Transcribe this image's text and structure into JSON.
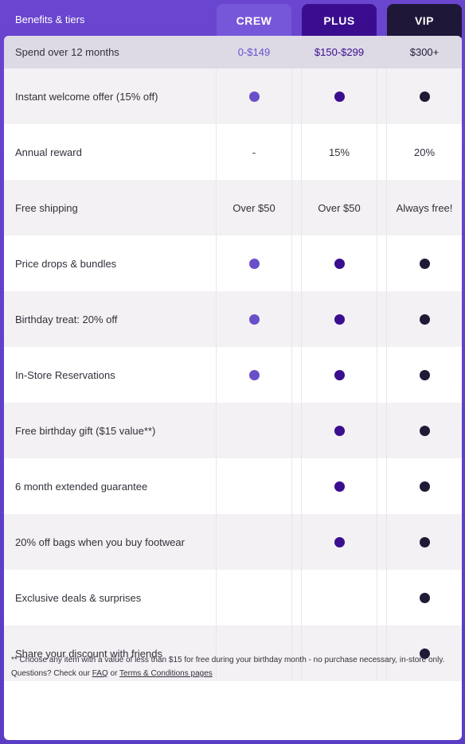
{
  "header": {
    "title": "Benefits & tiers",
    "tiers": [
      "CREW",
      "PLUS",
      "VIP"
    ]
  },
  "spend": {
    "label": "Spend over 12 months",
    "crew": "0-$149",
    "plus": "$150-$299",
    "vip": "$300+"
  },
  "rows": [
    {
      "label": "Instant welcome offer (15% off)",
      "crew": "dot",
      "plus": "dot",
      "vip": "dot"
    },
    {
      "label": "Annual reward",
      "crew": "-",
      "plus": "15%",
      "vip": "20%"
    },
    {
      "label": "Free shipping",
      "crew": "Over $50",
      "plus": "Over $50",
      "vip": "Always free!"
    },
    {
      "label": "Price drops & bundles",
      "crew": "dot",
      "plus": "dot",
      "vip": "dot"
    },
    {
      "label": "Birthday treat: 20% off",
      "crew": "dot",
      "plus": "dot",
      "vip": "dot"
    },
    {
      "label": "In-Store Reservations",
      "crew": "dot",
      "plus": "dot",
      "vip": "dot"
    },
    {
      "label": "Free birthday gift ($15 value**)",
      "crew": "",
      "plus": "dot",
      "vip": "dot"
    },
    {
      "label": "6 month extended guarantee",
      "crew": "",
      "plus": "dot",
      "vip": "dot"
    },
    {
      "label": "20% off bags when you buy footwear",
      "crew": "",
      "plus": "dot",
      "vip": "dot"
    },
    {
      "label": "Exclusive deals & surprises",
      "crew": "",
      "plus": "",
      "vip": "dot"
    },
    {
      "label": "Share your discount with friends",
      "crew": "",
      "plus": "",
      "vip": "dot"
    }
  ],
  "footer": {
    "note": "** Choose any item with a value of less than $15 for free during your birthday month - no purchase necessary, in-store only.",
    "questions_prefix": "Questions? Check our",
    "faq_link": "FAQ",
    "or_text": "or",
    "terms_link": "Terms & Conditions pages"
  },
  "colors": {
    "crew": "#6b4fc9",
    "plus": "#3b0d8f",
    "vip": "#201a36",
    "background": "#6c46cc"
  }
}
